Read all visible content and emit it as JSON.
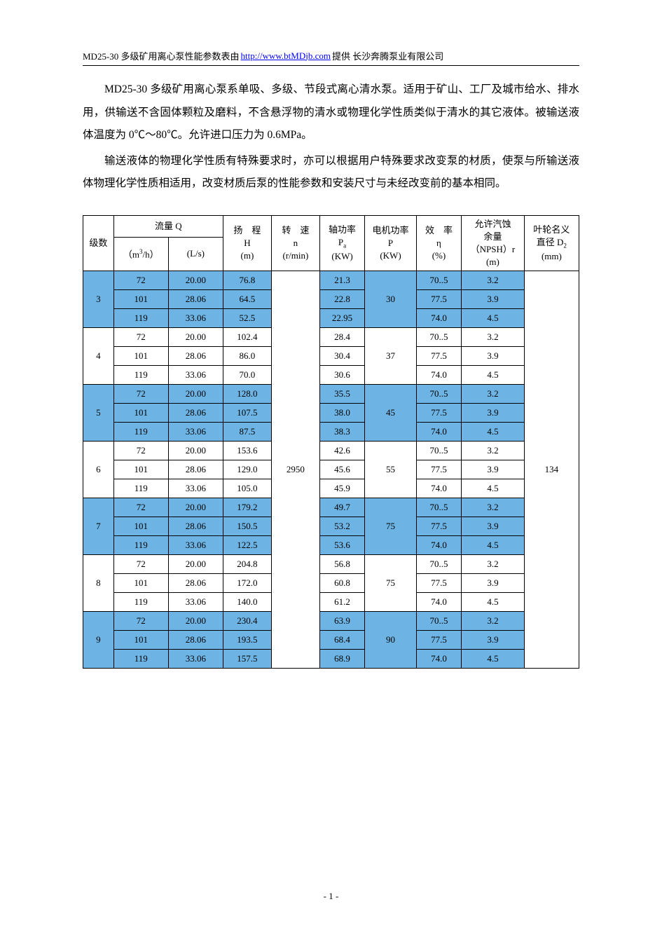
{
  "header": {
    "prefix": "MD25-30 多级矿用离心泵性能参数表由",
    "link_text": "http://www.btMDjb.com",
    "suffix": "提供 长沙奔腾泵业有限公司"
  },
  "paragraphs": [
    "MD25-30 多级矿用离心泵系单吸、多级、节段式离心清水泵。适用于矿山、工厂及城市给水、排水用，供输送不含固体颗粒及磨料，不含悬浮物的清水或物理化学性质类似于清水的其它液体。被输送液体温度为 0℃～80℃。允许进口压力为 0.6MPa。",
    "输送液体的物理化学性质有特殊要求时，亦可以根据用户特殊要求改变泵的材质，使泵与所输送液体物理化学性质相适用，改变材质后泵的性能参数和安装尺寸与未经改变前的基本相同。"
  ],
  "table": {
    "headers": {
      "stage": "级数",
      "flow_q": "流量 Q",
      "q_m3h": "（m³/h）",
      "q_ls": "(L/s)",
      "h": "扬　程\nH\n(m)",
      "n": "转　速\nn\n(r/min)",
      "pa": "轴功率\nPₐ\n(KW)",
      "p": "电机功率\nP\n(KW)",
      "eff": "效　率\nη\n(%)",
      "npsh": "允许汽蚀\n余量\n（NPSH）r\n(m)",
      "d2": "叶轮名义\n直径 D₂\n(mm)"
    },
    "n_value": "2950",
    "d2_value": "134",
    "stages": [
      {
        "stage": "3",
        "shaded": true,
        "p": "30",
        "rows": [
          {
            "q1": "72",
            "q2": "20.00",
            "h": "76.8",
            "pa": "21.3",
            "eff": "70..5",
            "npsh": "3.2"
          },
          {
            "q1": "101",
            "q2": "28.06",
            "h": "64.5",
            "pa": "22.8",
            "eff": "77.5",
            "npsh": "3.9"
          },
          {
            "q1": "119",
            "q2": "33.06",
            "h": "52.5",
            "pa": "22.95",
            "eff": "74.0",
            "npsh": "4.5"
          }
        ]
      },
      {
        "stage": "4",
        "shaded": false,
        "p": "37",
        "rows": [
          {
            "q1": "72",
            "q2": "20.00",
            "h": "102.4",
            "pa": "28.4",
            "eff": "70..5",
            "npsh": "3.2"
          },
          {
            "q1": "101",
            "q2": "28.06",
            "h": "86.0",
            "pa": "30.4",
            "eff": "77.5",
            "npsh": "3.9"
          },
          {
            "q1": "119",
            "q2": "33.06",
            "h": "70.0",
            "pa": "30.6",
            "eff": "74.0",
            "npsh": "4.5"
          }
        ]
      },
      {
        "stage": "5",
        "shaded": true,
        "p": "45",
        "rows": [
          {
            "q1": "72",
            "q2": "20.00",
            "h": "128.0",
            "pa": "35.5",
            "eff": "70..5",
            "npsh": "3.2"
          },
          {
            "q1": "101",
            "q2": "28.06",
            "h": "107.5",
            "pa": "38.0",
            "eff": "77.5",
            "npsh": "3.9"
          },
          {
            "q1": "119",
            "q2": "33.06",
            "h": "87.5",
            "pa": "38.3",
            "eff": "74.0",
            "npsh": "4.5"
          }
        ]
      },
      {
        "stage": "6",
        "shaded": false,
        "p": "55",
        "rows": [
          {
            "q1": "72",
            "q2": "20.00",
            "h": "153.6",
            "pa": "42.6",
            "eff": "70..5",
            "npsh": "3.2"
          },
          {
            "q1": "101",
            "q2": "28.06",
            "h": "129.0",
            "pa": "45.6",
            "eff": "77.5",
            "npsh": "3.9"
          },
          {
            "q1": "119",
            "q2": "33.06",
            "h": "105.0",
            "pa": "45.9",
            "eff": "74.0",
            "npsh": "4.5"
          }
        ]
      },
      {
        "stage": "7",
        "shaded": true,
        "p": "75",
        "rows": [
          {
            "q1": "72",
            "q2": "20.00",
            "h": "179.2",
            "pa": "49.7",
            "eff": "70..5",
            "npsh": "3.2"
          },
          {
            "q1": "101",
            "q2": "28.06",
            "h": "150.5",
            "pa": "53.2",
            "eff": "77.5",
            "npsh": "3.9"
          },
          {
            "q1": "119",
            "q2": "33.06",
            "h": "122.5",
            "pa": "53.6",
            "eff": "74.0",
            "npsh": "4.5"
          }
        ]
      },
      {
        "stage": "8",
        "shaded": false,
        "p": "75",
        "rows": [
          {
            "q1": "72",
            "q2": "20.00",
            "h": "204.8",
            "pa": "56.8",
            "eff": "70..5",
            "npsh": "3.2"
          },
          {
            "q1": "101",
            "q2": "28.06",
            "h": "172.0",
            "pa": "60.8",
            "eff": "77.5",
            "npsh": "3.9"
          },
          {
            "q1": "119",
            "q2": "33.06",
            "h": "140.0",
            "pa": "61.2",
            "eff": "74.0",
            "npsh": "4.5"
          }
        ]
      },
      {
        "stage": "9",
        "shaded": true,
        "p": "90",
        "rows": [
          {
            "q1": "72",
            "q2": "20.00",
            "h": "230.4",
            "pa": "63.9",
            "eff": "70..5",
            "npsh": "3.2"
          },
          {
            "q1": "101",
            "q2": "28.06",
            "h": "193.5",
            "pa": "68.4",
            "eff": "77.5",
            "npsh": "3.9"
          },
          {
            "q1": "119",
            "q2": "33.06",
            "h": "157.5",
            "pa": "68.9",
            "eff": "74.0",
            "npsh": "4.5"
          }
        ]
      }
    ]
  },
  "page_number": "- 1 -"
}
